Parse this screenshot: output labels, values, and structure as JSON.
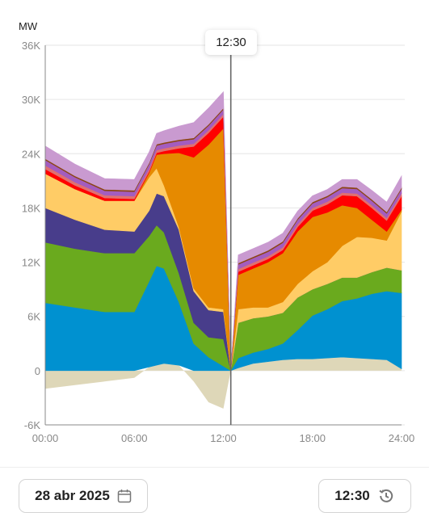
{
  "unit": "MW",
  "cursor": {
    "label": "12:30",
    "time_hours": 12.5
  },
  "footer": {
    "date": "28 abr 2025",
    "time": "12:30"
  },
  "colors": {
    "solar_pv": "#e68a00",
    "wind": "#ffcc66",
    "combined_cycle": "#483d8b",
    "hydro": "#6aaa1e",
    "nuclear": "#0091d0",
    "exchanges": "#ded7b8",
    "thermal_solar": "#ff0000",
    "cogeneration": "#a35dbf",
    "other_renewables": "#c99ad0",
    "coal": "#8b4513",
    "waste": "#e07070",
    "axis_line": "#888888",
    "grid_line": "#e6e6e6",
    "cursor_line": "#666666"
  },
  "chart_data": {
    "type": "area",
    "stacked": true,
    "ylabel": "MW",
    "xlabel": "",
    "xlim": [
      0,
      24
    ],
    "ylim": [
      -6000,
      36000
    ],
    "yticks": [
      -6000,
      0,
      6000,
      12000,
      18000,
      24000,
      30000,
      36000
    ],
    "ytick_labels": [
      "-6K",
      "0",
      "6K",
      "12K",
      "18K",
      "24K",
      "30K",
      "36K"
    ],
    "xticks": [
      0,
      6,
      12,
      18,
      24
    ],
    "xtick_labels": [
      "00:00",
      "06:00",
      "12:00",
      "18:00",
      "24:00"
    ],
    "grid": true,
    "x": [
      0,
      2,
      4,
      6,
      7,
      7.5,
      8,
      9,
      10,
      11,
      12,
      12.5,
      13,
      14,
      15,
      16,
      17,
      18,
      19,
      20,
      21,
      22,
      23,
      24
    ],
    "negative_series": {
      "values": [
        -2000,
        -1600,
        -1200,
        -800,
        400,
        600,
        800,
        600,
        -1200,
        -3500,
        -4200,
        0,
        300,
        800,
        1000,
        1200,
        1300,
        1300,
        1400,
        1500,
        1400,
        1300,
        1200,
        200
      ]
    },
    "series": [
      {
        "color_key": "nuclear",
        "values": [
          7500,
          7000,
          6500,
          6500,
          9500,
          11000,
          10500,
          7000,
          3000,
          1500,
          500,
          0,
          1100,
          1200,
          1400,
          1800,
          3200,
          4800,
          5400,
          6200,
          6600,
          7200,
          7600,
          8400
        ]
      },
      {
        "color_key": "hydro",
        "values": [
          6700,
          6500,
          6500,
          6500,
          5000,
          4500,
          4000,
          3200,
          2300,
          2200,
          3000,
          0,
          3900,
          3800,
          3600,
          3400,
          3600,
          2900,
          2800,
          2600,
          2300,
          2400,
          2600,
          2500
        ]
      },
      {
        "color_key": "combined_cycle",
        "values": [
          3800,
          3200,
          2600,
          2400,
          2800,
          3500,
          4000,
          4800,
          3500,
          3000,
          3000,
          0,
          0,
          0,
          0,
          0,
          0,
          0,
          0,
          0,
          0,
          0,
          0,
          0
        ]
      },
      {
        "color_key": "wind",
        "values": [
          3800,
          3400,
          3200,
          3400,
          3700,
          2800,
          1200,
          300,
          300,
          300,
          300,
          0,
          1500,
          1200,
          1000,
          1200,
          1500,
          2000,
          2400,
          3500,
          4500,
          3800,
          3000,
          6500
        ]
      },
      {
        "color_key": "solar_pv",
        "values": [
          0,
          0,
          0,
          0,
          500,
          1500,
          3500,
          8200,
          14500,
          18000,
          20000,
          0,
          3800,
          4300,
          5000,
          5400,
          5800,
          6000,
          5500,
          4500,
          3200,
          2000,
          1000,
          200
        ]
      },
      {
        "color_key": "thermal_solar",
        "values": [
          500,
          400,
          300,
          200,
          150,
          200,
          300,
          500,
          1200,
          1300,
          1300,
          0,
          350,
          350,
          350,
          350,
          500,
          700,
          900,
          1100,
          1300,
          1300,
          1200,
          1500
        ]
      },
      {
        "color_key": "waste",
        "values": [
          400,
          350,
          300,
          300,
          300,
          300,
          300,
          300,
          300,
          300,
          300,
          0,
          300,
          300,
          300,
          300,
          300,
          300,
          300,
          300,
          300,
          300,
          300,
          300
        ]
      },
      {
        "color_key": "cogeneration",
        "values": [
          600,
          550,
          500,
          500,
          500,
          500,
          500,
          500,
          500,
          500,
          500,
          0,
          500,
          500,
          500,
          500,
          500,
          500,
          500,
          500,
          500,
          500,
          500,
          500
        ]
      },
      {
        "color_key": "coal",
        "values": [
          150,
          150,
          150,
          150,
          150,
          150,
          150,
          150,
          150,
          150,
          150,
          0,
          150,
          150,
          150,
          150,
          150,
          150,
          150,
          150,
          150,
          150,
          150,
          150
        ]
      },
      {
        "color_key": "other_renewables",
        "values": [
          1400,
          1300,
          1200,
          1200,
          1200,
          1200,
          1300,
          1500,
          1700,
          1800,
          1800,
          0,
          900,
          900,
          900,
          900,
          800,
          700,
          700,
          800,
          900,
          1000,
          1100,
          1300
        ]
      }
    ]
  }
}
